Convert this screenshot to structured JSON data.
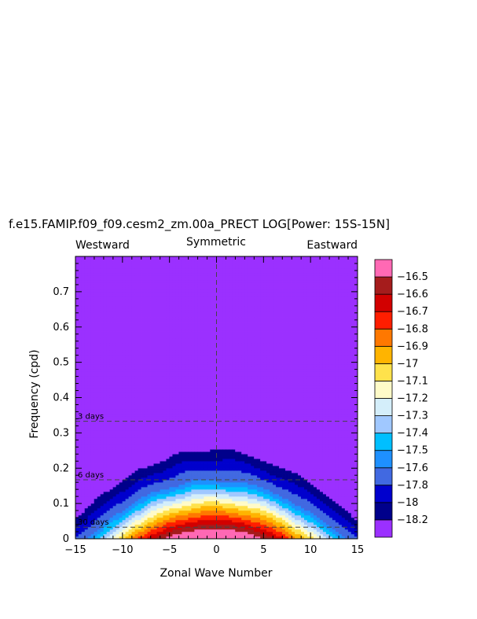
{
  "chart_data": {
    "type": "heatmap",
    "title": "f.e15.FAMIP.f09_f09.cesm2_zm.00a_PRECT LOG[Power: 15S-15N]",
    "top_labels": {
      "left": "Westward",
      "center": "Symmetric",
      "right": "Eastward"
    },
    "xlabel": "Zonal Wave Number",
    "ylabel": "Frequency (cpd)",
    "xlim": [
      -15,
      15
    ],
    "ylim": [
      0,
      0.8
    ],
    "xticks": [
      -15,
      -10,
      -5,
      0,
      5,
      10,
      15
    ],
    "yticks": [
      0,
      0.1,
      0.2,
      0.3,
      0.4,
      0.5,
      0.6,
      0.7
    ],
    "reference_lines": [
      {
        "label": "3 days",
        "frequency": 0.333
      },
      {
        "label": "6 days",
        "frequency": 0.167
      },
      {
        "label": "30 days",
        "frequency": 0.033
      }
    ],
    "zero_line_x": 0,
    "color_levels": [
      -18.2,
      -18,
      -17.8,
      -17.6,
      -17.5,
      -17.4,
      -17.3,
      -17.2,
      -17.1,
      -17,
      -16.9,
      -16.8,
      -16.7,
      -16.6,
      -16.5
    ],
    "colorbar_labels": [
      "-16.5",
      "-16.6",
      "-16.7",
      "-16.8",
      "-16.9",
      "-17",
      "-17.1",
      "-17.2",
      "-17.3",
      "-17.4",
      "-17.5",
      "-17.6",
      "-17.8",
      "-18",
      "-18.2"
    ],
    "colors": [
      "#9b30ff",
      "#00008b",
      "#0000cd",
      "#4169e1",
      "#1e90ff",
      "#00bfff",
      "#a0c8ff",
      "#d4eefa",
      "#fffbc8",
      "#ffe24b",
      "#ffb400",
      "#ff7800",
      "#ff1e00",
      "#d20000",
      "#a51c1c",
      "#ff69b4"
    ]
  }
}
